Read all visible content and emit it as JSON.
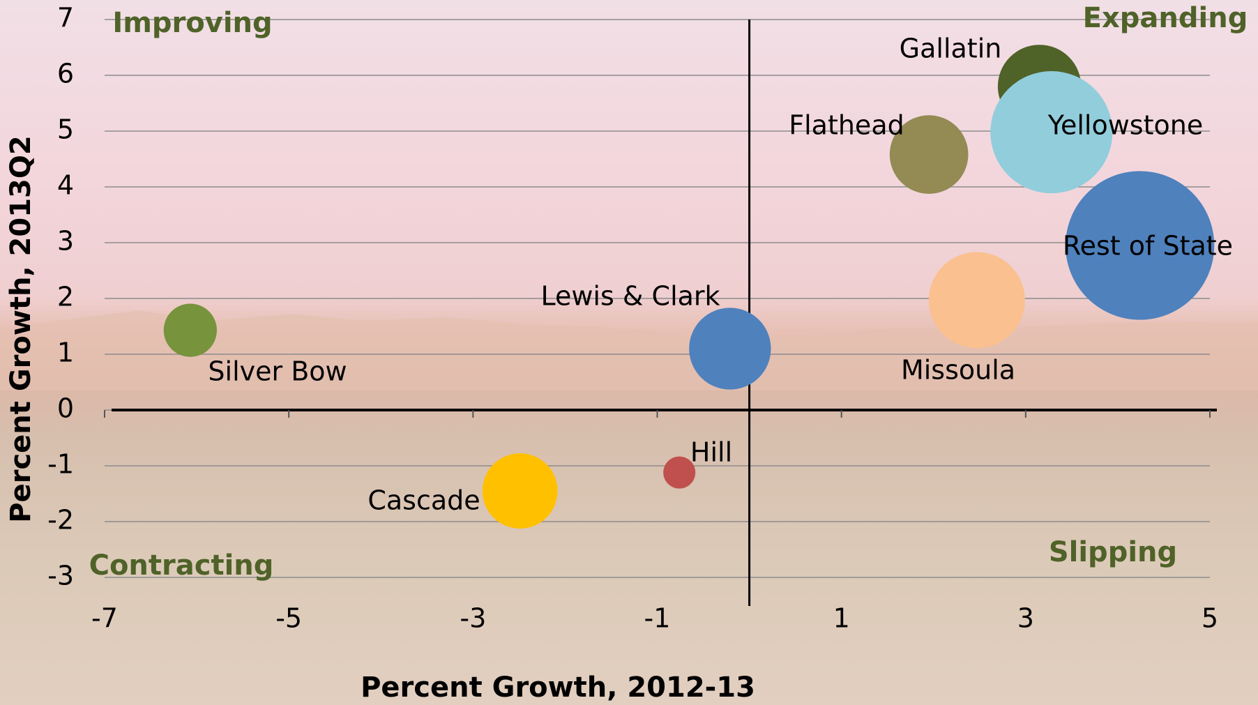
{
  "chart_data": {
    "type": "bubble",
    "xlabel": "Percent Growth, 2012-13",
    "ylabel": "Percent Growth, 2013Q2",
    "xlim": [
      -7,
      5
    ],
    "xticks": [
      -7,
      -5,
      -3,
      -1,
      1,
      3,
      5
    ],
    "ylim": [
      -3,
      7
    ],
    "yticks": [
      -3,
      -2,
      -1,
      0,
      1,
      2,
      3,
      4,
      5,
      6,
      7
    ],
    "grid": true,
    "annotations": [
      "Improving",
      "Expanding",
      "Contracting",
      "Slipping"
    ],
    "points": [
      {
        "name": "Silver Bow",
        "color": "#77933c",
        "x": -6.07,
        "y": 1.43,
        "size": 11
      },
      {
        "name": "Cascade",
        "color": "#ffc000",
        "x": -2.49,
        "y": -1.45,
        "size": 22
      },
      {
        "name": "Hill",
        "color": "#c0504d",
        "x": -0.76,
        "y": -1.12,
        "size": 4
      },
      {
        "name": "Lewis & Clark",
        "color": "#4f81bd",
        "x": -0.21,
        "y": 1.1,
        "size": 26
      },
      {
        "name": "Missoula",
        "color": "#fac090",
        "x": 2.47,
        "y": 1.97,
        "size": 36
      },
      {
        "name": "Flathead",
        "color": "#948a54",
        "x": 1.95,
        "y": 4.58,
        "size": 24
      },
      {
        "name": "Gallatin",
        "color": "#4f6228",
        "x": 3.15,
        "y": 5.8,
        "size": 27
      },
      {
        "name": "Yellowstone",
        "color": "#92cddc",
        "x": 3.28,
        "y": 4.98,
        "size": 58
      },
      {
        "name": "Rest of State",
        "color": "#4f81bd",
        "x": 4.24,
        "y": 2.95,
        "size": 86
      }
    ]
  }
}
